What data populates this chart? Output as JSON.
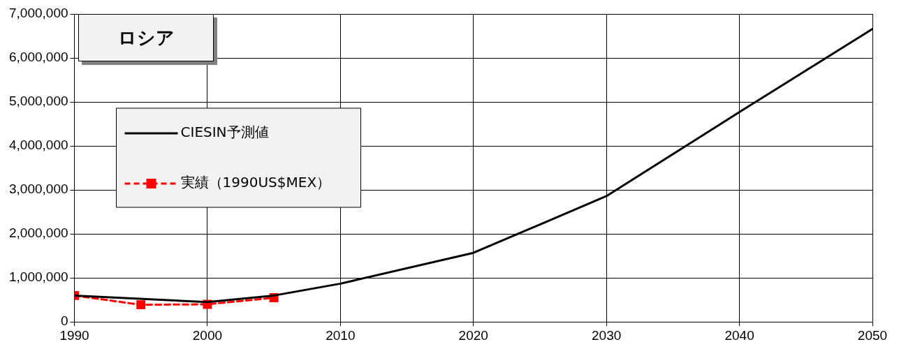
{
  "chart_data": {
    "type": "line",
    "title": "ロシア",
    "legend": "top left",
    "grid": true,
    "xlim": [
      1990,
      2050
    ],
    "xticks": [
      1990,
      2000,
      2010,
      2020,
      2030,
      2040,
      2050
    ],
    "ylim": [
      0,
      7000000
    ],
    "yticks": [
      0,
      {
        "value": 1000000,
        "label": "1,000,000"
      },
      {
        "value": 2000000,
        "label": "2,000,000"
      },
      {
        "value": 3000000,
        "label": "3,000,000"
      },
      {
        "value": 4000000,
        "label": "4,000,000"
      },
      {
        "value": 5000000,
        "label": "5,000,000"
      },
      {
        "value": 6000000,
        "label": "6,000,000"
      },
      {
        "value": 7000000,
        "label": "7,000,000"
      }
    ],
    "series": [
      {
        "name": "CIESIN予測値",
        "color": "#000000",
        "marker": "none",
        "line_style": "solid",
        "x": [
          1990,
          2000,
          2005,
          2010,
          2020,
          2030,
          2040,
          2050
        ],
        "values": [
          600000,
          450000,
          600000,
          870000,
          1570000,
          2860000,
          4770000,
          6660000
        ]
      },
      {
        "name": "実績（1990US$MEX）",
        "color": "#ff0000",
        "marker": "square",
        "line_style": "dashed",
        "x": [
          1990,
          1995,
          2000,
          2005
        ],
        "values": [
          600000,
          390000,
          400000,
          550000
        ]
      }
    ]
  }
}
